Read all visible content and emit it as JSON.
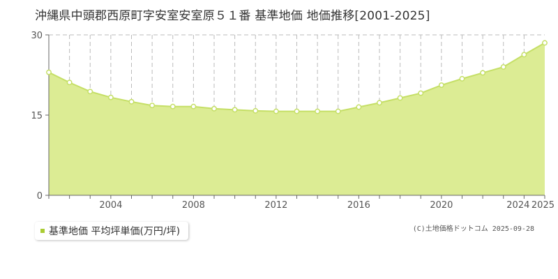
{
  "title": "沖縄県中頭郡西原町字安室安室原５１番 基準地価 地価推移[2001-2025]",
  "legend_label": "基準地価 平均坪単価(万円/坪)",
  "copyright": "(C)土地価格ドットコム 2025-09-28",
  "colors": {
    "area_fill": "#dcec94",
    "line": "#c5df66",
    "marker_stroke": "#c5df66",
    "marker_fill": "#ffffff",
    "grid": "#bbbbbb",
    "legend_swatch": "#aacc33"
  },
  "chart_data": {
    "type": "area",
    "title": "沖縄県中頭郡西原町字安室安室原５１番 基準地価 地価推移[2001-2025]",
    "xlabel": "",
    "ylabel": "",
    "ylim": [
      0,
      30
    ],
    "xlim": [
      2001,
      2025
    ],
    "y_ticks": [
      0,
      15,
      30
    ],
    "x_tick_labels": [
      "2004",
      "2008",
      "2012",
      "2016",
      "2020",
      "2024",
      "2025"
    ],
    "grid": true,
    "legend_position": "bottom-left",
    "series": [
      {
        "name": "基準地価 平均坪単価(万円/坪)",
        "x": [
          2001,
          2002,
          2003,
          2004,
          2005,
          2006,
          2007,
          2008,
          2009,
          2010,
          2011,
          2012,
          2013,
          2014,
          2015,
          2016,
          2017,
          2018,
          2019,
          2020,
          2021,
          2022,
          2023,
          2024,
          2025
        ],
        "values": [
          23.0,
          21.1,
          19.4,
          18.3,
          17.5,
          16.8,
          16.6,
          16.6,
          16.2,
          16.0,
          15.8,
          15.7,
          15.7,
          15.7,
          15.7,
          16.5,
          17.3,
          18.2,
          19.1,
          20.6,
          21.8,
          22.9,
          24.0,
          26.3,
          28.5
        ]
      }
    ]
  }
}
